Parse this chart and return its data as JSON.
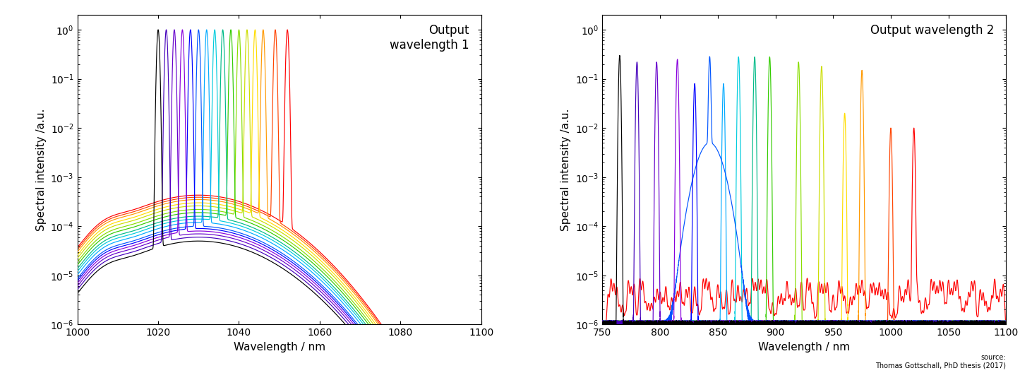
{
  "title1": "Output\nwavelength 1",
  "title2": "Output wavelength 2",
  "xlabel": "Wavelength / nm",
  "ylabel": "Spectral intensity /a.u.",
  "xlim1": [
    1000,
    1100
  ],
  "xlim2": [
    750,
    1100
  ],
  "ylim": [
    1e-06,
    2.0
  ],
  "colors": [
    "#000000",
    "#4400bb",
    "#6600cc",
    "#8800dd",
    "#0000ff",
    "#0055ff",
    "#00aaff",
    "#00ccdd",
    "#00bb88",
    "#33cc00",
    "#88dd00",
    "#ccdd00",
    "#ffdd00",
    "#ff9900",
    "#ff4400",
    "#ff0000"
  ],
  "peak_positions1": [
    1020,
    1022,
    1024,
    1026,
    1028,
    1030,
    1032,
    1034,
    1036,
    1038,
    1040,
    1042,
    1044,
    1046,
    1049,
    1052
  ],
  "peak_positions2": [
    765,
    780,
    797,
    815,
    830,
    843,
    855,
    868,
    882,
    895,
    920,
    940,
    960,
    975,
    1000,
    1020
  ],
  "source_text": "source:\nThomas Gottschall, PhD thesis (2017)",
  "bg_amplitudes": [
    5e-05,
    6e-05,
    7e-05,
    8e-05,
    9e-05,
    0.0001,
    0.00012,
    0.00014,
    0.00016,
    0.00019,
    0.00022,
    0.00026,
    0.0003,
    0.00035,
    0.00039,
    0.00043
  ],
  "peak2_heights": [
    0.3,
    0.22,
    0.22,
    0.25,
    0.08,
    0.28,
    0.08,
    0.28,
    0.28,
    0.28,
    0.22,
    0.18,
    0.02,
    0.15,
    0.01,
    0.01
  ]
}
